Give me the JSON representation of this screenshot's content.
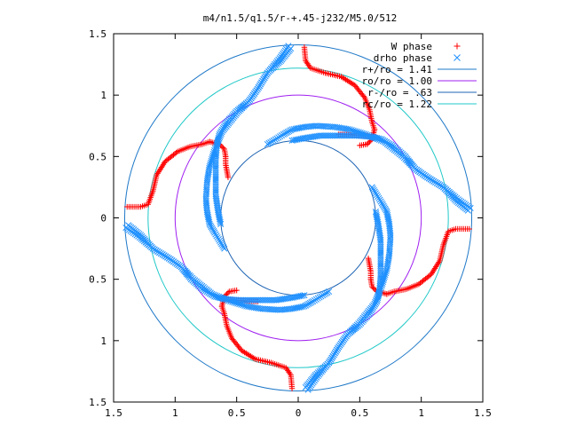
{
  "chart_data": {
    "type": "scatter",
    "title": "m4/n1.5/q1.5/r-+.45-j232/M5.0/512",
    "xlabel": "",
    "ylabel": "",
    "xlim": [
      -1.5,
      1.5
    ],
    "ylim": [
      -1.5,
      1.5
    ],
    "x_ticks": [
      {
        "value": -1.5,
        "label": "1.5"
      },
      {
        "value": -1.0,
        "label": "1"
      },
      {
        "value": -0.5,
        "label": "0.5"
      },
      {
        "value": 0.0,
        "label": "0"
      },
      {
        "value": 0.5,
        "label": "0.5"
      },
      {
        "value": 1.0,
        "label": "1"
      },
      {
        "value": 1.5,
        "label": "1.5"
      }
    ],
    "y_ticks": [
      {
        "value": 1.5,
        "label": "1.5"
      },
      {
        "value": 1.0,
        "label": "1"
      },
      {
        "value": 0.5,
        "label": "0.5"
      },
      {
        "value": 0.0,
        "label": "0"
      },
      {
        "value": -0.5,
        "label": "0.5"
      },
      {
        "value": -1.0,
        "label": "1"
      },
      {
        "value": -1.5,
        "label": "1.5"
      }
    ],
    "grid": false,
    "legend_position": "top-right",
    "series": [
      {
        "name": "W phase",
        "marker": "+",
        "color": "#ff0000",
        "arms": [
          [
            [
              0.05,
              1.39
            ],
            [
              0.06,
              1.28
            ],
            [
              0.1,
              1.22
            ],
            [
              0.22,
              1.18
            ],
            [
              0.35,
              1.15
            ],
            [
              0.46,
              1.08
            ],
            [
              0.54,
              0.98
            ],
            [
              0.58,
              0.88
            ],
            [
              0.6,
              0.78
            ],
            [
              0.62,
              0.72
            ]
          ],
          [
            [
              0.62,
              0.72
            ],
            [
              0.6,
              0.64
            ],
            [
              0.56,
              0.6
            ],
            [
              0.5,
              0.59
            ]
          ],
          [
            [
              0.33,
              0.68
            ],
            [
              0.55,
              0.67
            ],
            [
              0.62,
              0.66
            ]
          ],
          [
            [
              1.39,
              -0.09
            ],
            [
              1.28,
              -0.09
            ],
            [
              1.22,
              -0.11
            ],
            [
              1.18,
              -0.22
            ],
            [
              1.15,
              -0.35
            ],
            [
              1.08,
              -0.46
            ],
            [
              0.98,
              -0.54
            ],
            [
              0.88,
              -0.58
            ],
            [
              0.78,
              -0.6
            ],
            [
              0.72,
              -0.62
            ]
          ],
          [
            [
              0.72,
              -0.62
            ],
            [
              0.64,
              -0.6
            ],
            [
              0.6,
              -0.56
            ],
            [
              0.59,
              -0.5
            ]
          ],
          [
            [
              0.57,
              -0.33
            ],
            [
              0.59,
              -0.44
            ],
            [
              0.59,
              -0.5
            ]
          ],
          [
            [
              -0.05,
              -1.39
            ],
            [
              -0.06,
              -1.28
            ],
            [
              -0.1,
              -1.22
            ],
            [
              -0.22,
              -1.18
            ],
            [
              -0.35,
              -1.15
            ],
            [
              -0.46,
              -1.08
            ],
            [
              -0.54,
              -0.98
            ],
            [
              -0.58,
              -0.88
            ],
            [
              -0.6,
              -0.78
            ],
            [
              -0.62,
              -0.72
            ]
          ],
          [
            [
              -0.62,
              -0.72
            ],
            [
              -0.6,
              -0.64
            ],
            [
              -0.56,
              -0.6
            ],
            [
              -0.5,
              -0.59
            ]
          ],
          [
            [
              -0.33,
              -0.68
            ],
            [
              -0.55,
              -0.67
            ],
            [
              -0.62,
              -0.66
            ]
          ],
          [
            [
              -1.39,
              0.09
            ],
            [
              -1.28,
              0.09
            ],
            [
              -1.22,
              0.11
            ],
            [
              -1.18,
              0.22
            ],
            [
              -1.15,
              0.35
            ],
            [
              -1.08,
              0.46
            ],
            [
              -0.98,
              0.54
            ],
            [
              -0.88,
              0.58
            ],
            [
              -0.78,
              0.6
            ],
            [
              -0.72,
              0.62
            ]
          ],
          [
            [
              -0.72,
              0.62
            ],
            [
              -0.64,
              0.6
            ],
            [
              -0.6,
              0.56
            ],
            [
              -0.59,
              0.5
            ]
          ],
          [
            [
              -0.57,
              0.33
            ],
            [
              -0.59,
              0.44
            ],
            [
              -0.59,
              0.5
            ]
          ]
        ]
      },
      {
        "name": "drho phase",
        "marker": "x",
        "color": "#1e90ff",
        "arms": [
          [
            [
              -0.08,
              1.4
            ],
            [
              -0.15,
              1.3
            ],
            [
              -0.25,
              1.18
            ],
            [
              -0.33,
              1.05
            ],
            [
              -0.4,
              0.95
            ],
            [
              -0.5,
              0.87
            ],
            [
              -0.58,
              0.78
            ],
            [
              -0.64,
              0.68
            ],
            [
              -0.66,
              0.6
            ],
            [
              -0.67,
              0.48
            ],
            [
              -0.67,
              0.33
            ],
            [
              -0.67,
              0.18
            ],
            [
              -0.65,
              0.05
            ],
            [
              -0.63,
              -0.05
            ]
          ],
          [
            [
              -0.25,
              0.6
            ],
            [
              -0.2,
              0.63
            ],
            [
              -0.12,
              0.68
            ],
            [
              -0.05,
              0.72
            ],
            [
              0.05,
              0.74
            ],
            [
              0.15,
              0.75
            ],
            [
              0.3,
              0.74
            ],
            [
              0.42,
              0.72
            ],
            [
              0.55,
              0.68
            ],
            [
              0.7,
              0.62
            ],
            [
              0.85,
              0.5
            ],
            [
              0.95,
              0.4
            ],
            [
              1.05,
              0.33
            ],
            [
              1.18,
              0.25
            ],
            [
              1.28,
              0.14
            ],
            [
              1.38,
              0.06
            ]
          ],
          [
            [
              1.4,
              0.08
            ],
            [
              1.3,
              0.15
            ],
            [
              1.18,
              0.25
            ],
            [
              1.05,
              0.33
            ],
            [
              0.95,
              0.4
            ],
            [
              0.87,
              0.5
            ],
            [
              0.78,
              0.58
            ],
            [
              0.68,
              0.64
            ],
            [
              0.6,
              0.66
            ],
            [
              0.48,
              0.67
            ],
            [
              0.33,
              0.67
            ],
            [
              0.18,
              0.67
            ],
            [
              0.05,
              0.65
            ],
            [
              -0.05,
              0.63
            ]
          ],
          [
            [
              0.6,
              0.25
            ],
            [
              0.63,
              0.2
            ],
            [
              0.68,
              0.12
            ],
            [
              0.72,
              0.05
            ],
            [
              0.74,
              -0.05
            ],
            [
              0.75,
              -0.15
            ],
            [
              0.74,
              -0.3
            ],
            [
              0.72,
              -0.42
            ],
            [
              0.68,
              -0.55
            ],
            [
              0.62,
              -0.7
            ],
            [
              0.5,
              -0.85
            ],
            [
              0.4,
              -0.95
            ],
            [
              0.33,
              -1.05
            ],
            [
              0.25,
              -1.18
            ],
            [
              0.14,
              -1.28
            ],
            [
              0.06,
              -1.38
            ]
          ],
          [
            [
              0.08,
              -1.4
            ],
            [
              0.15,
              -1.3
            ],
            [
              0.25,
              -1.18
            ],
            [
              0.33,
              -1.05
            ],
            [
              0.4,
              -0.95
            ],
            [
              0.5,
              -0.87
            ],
            [
              0.58,
              -0.78
            ],
            [
              0.64,
              -0.68
            ],
            [
              0.66,
              -0.6
            ],
            [
              0.67,
              -0.48
            ],
            [
              0.67,
              -0.33
            ],
            [
              0.67,
              -0.18
            ],
            [
              0.65,
              -0.05
            ],
            [
              0.63,
              0.05
            ]
          ],
          [
            [
              0.25,
              -0.6
            ],
            [
              0.2,
              -0.63
            ],
            [
              0.12,
              -0.68
            ],
            [
              0.05,
              -0.72
            ],
            [
              -0.05,
              -0.74
            ],
            [
              -0.15,
              -0.75
            ],
            [
              -0.3,
              -0.74
            ],
            [
              -0.42,
              -0.72
            ],
            [
              -0.55,
              -0.68
            ],
            [
              -0.7,
              -0.62
            ],
            [
              -0.85,
              -0.5
            ],
            [
              -0.95,
              -0.4
            ],
            [
              -1.05,
              -0.33
            ],
            [
              -1.18,
              -0.25
            ],
            [
              -1.28,
              -0.14
            ],
            [
              -1.38,
              -0.06
            ]
          ],
          [
            [
              -1.4,
              -0.08
            ],
            [
              -1.3,
              -0.15
            ],
            [
              -1.18,
              -0.25
            ],
            [
              -1.05,
              -0.33
            ],
            [
              -0.95,
              -0.4
            ],
            [
              -0.87,
              -0.5
            ],
            [
              -0.78,
              -0.58
            ],
            [
              -0.68,
              -0.64
            ],
            [
              -0.6,
              -0.66
            ],
            [
              -0.48,
              -0.67
            ],
            [
              -0.33,
              -0.67
            ],
            [
              -0.18,
              -0.67
            ],
            [
              -0.05,
              -0.65
            ],
            [
              0.05,
              -0.63
            ]
          ],
          [
            [
              -0.6,
              -0.25
            ],
            [
              -0.63,
              -0.2
            ],
            [
              -0.68,
              -0.12
            ],
            [
              -0.72,
              -0.05
            ],
            [
              -0.74,
              0.05
            ],
            [
              -0.75,
              0.15
            ],
            [
              -0.74,
              0.3
            ],
            [
              -0.72,
              0.42
            ],
            [
              -0.68,
              0.55
            ],
            [
              -0.62,
              0.7
            ],
            [
              -0.5,
              0.85
            ],
            [
              -0.4,
              0.95
            ],
            [
              -0.33,
              1.05
            ],
            [
              -0.25,
              1.18
            ],
            [
              -0.14,
              1.28
            ],
            [
              -0.06,
              1.38
            ]
          ]
        ]
      }
    ],
    "circles": [
      {
        "name": "r+/ro = 1.41",
        "radius": 1.41,
        "color": "#1e78c8"
      },
      {
        "name": "ro/ro = 1.00",
        "radius": 1.0,
        "color": "#a020f0"
      },
      {
        "name": "r-/ro = .63",
        "radius": 0.63,
        "color": "#1e64b4"
      },
      {
        "name": "rc/ro = 1.22",
        "radius": 1.22,
        "color": "#20c8c8"
      }
    ]
  }
}
